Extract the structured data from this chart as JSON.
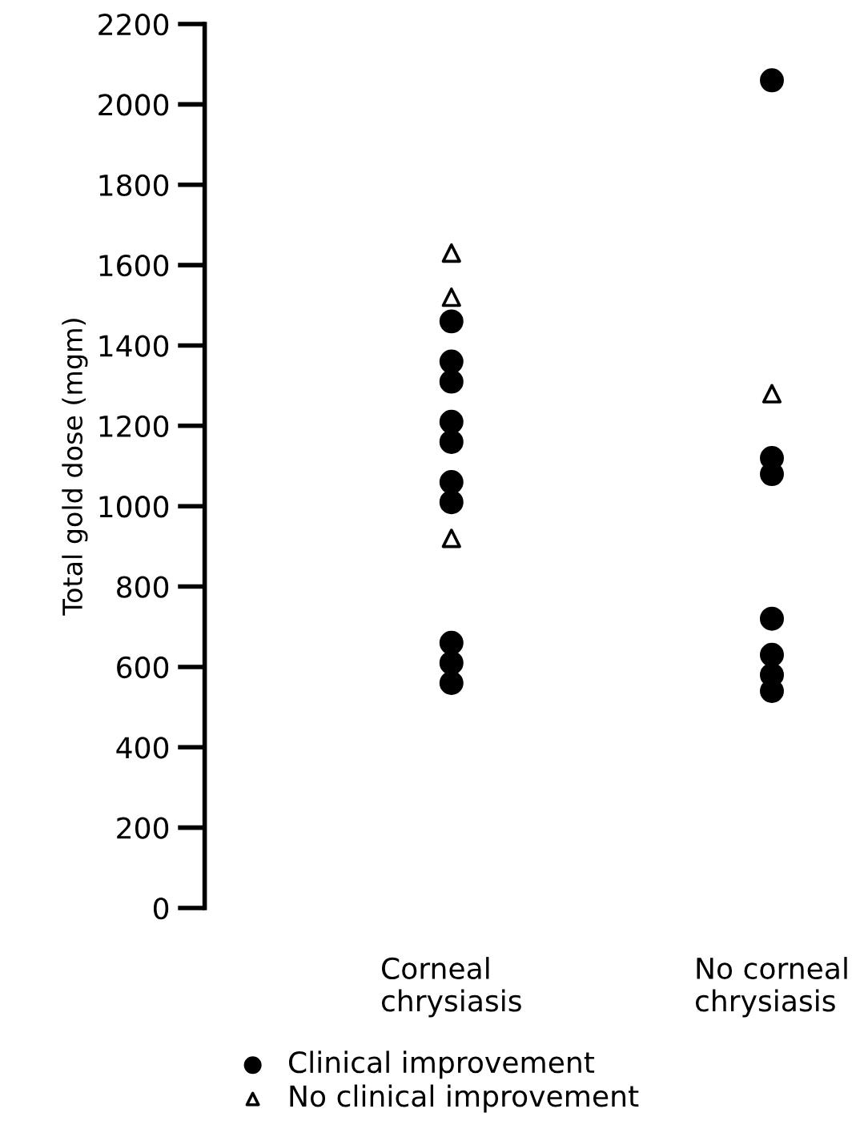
{
  "chart_data": {
    "type": "scatter",
    "ylabel": "Total gold dose (mgm)",
    "categories": [
      "Corneal\nchrysiasis",
      "No corneal\nchrysiasis"
    ],
    "ylim": [
      0,
      2200
    ],
    "yticks": [
      0,
      200,
      400,
      600,
      800,
      1000,
      1200,
      1400,
      1600,
      1800,
      2000,
      2200
    ],
    "grid": false,
    "legend": "bottom",
    "series": [
      {
        "name": "Clinical improvement",
        "color": "#000000",
        "marker": "circle",
        "x": [
          "Corneal\nchrysiasis",
          "Corneal\nchrysiasis",
          "Corneal\nchrysiasis",
          "Corneal\nchrysiasis",
          "Corneal\nchrysiasis",
          "Corneal\nchrysiasis",
          "Corneal\nchrysiasis",
          "Corneal\nchrysiasis",
          "Corneal\nchrysiasis",
          "Corneal\nchrysiasis",
          "No corneal\nchrysiasis",
          "No corneal\nchrysiasis",
          "No corneal\nchrysiasis",
          "No corneal\nchrysiasis",
          "No corneal\nchrysiasis",
          "No corneal\nchrysiasis",
          "No corneal\nchrysiasis"
        ],
        "values": [
          1460,
          1360,
          1310,
          1210,
          1160,
          1060,
          1010,
          660,
          610,
          560,
          2060,
          1120,
          1080,
          720,
          630,
          580,
          540
        ]
      },
      {
        "name": "No clinical improvement",
        "color": "#000000",
        "marker": "triangle",
        "x": [
          "Corneal\nchrysiasis",
          "Corneal\nchrysiasis",
          "Corneal\nchrysiasis",
          "No corneal\nchrysiasis"
        ],
        "values": [
          1630,
          1520,
          920,
          1280
        ]
      }
    ]
  }
}
